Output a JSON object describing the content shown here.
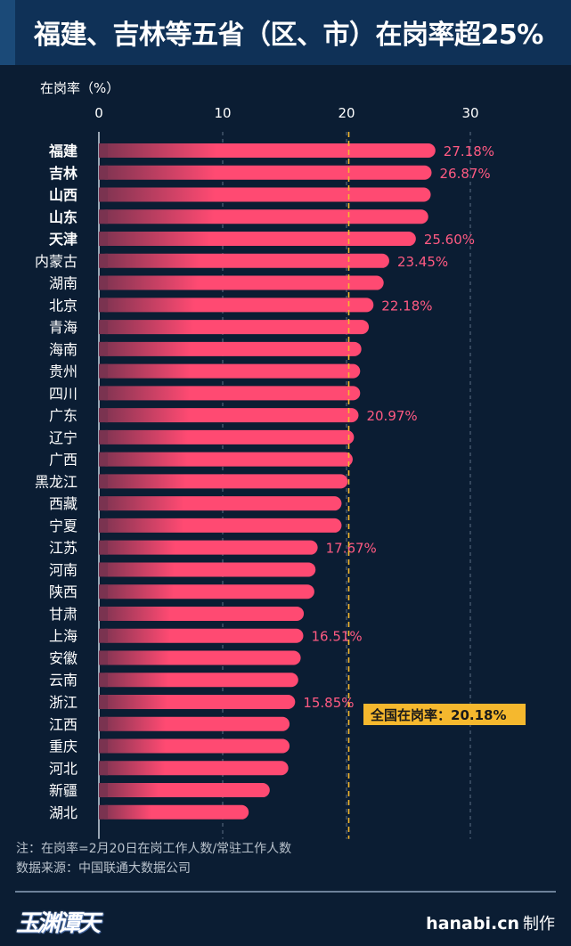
{
  "title": "福建、吉林等五省（区、市）在岗率超25%",
  "chart_data": {
    "type": "bar",
    "orientation": "horizontal",
    "xlabel": "在岗率（%）",
    "xlim": [
      0,
      30
    ],
    "xticks": [
      "0",
      "10",
      "20",
      "30"
    ],
    "grid": true,
    "bar_color": "#ff4a72",
    "categories": [
      "福建",
      "吉林",
      "山西",
      "山东",
      "天津",
      "内蒙古",
      "湖南",
      "北京",
      "青海",
      "海南",
      "贵州",
      "四川",
      "广东",
      "辽宁",
      "广西",
      "黑龙江",
      "西藏",
      "宁夏",
      "江苏",
      "河南",
      "陕西",
      "甘肃",
      "上海",
      "安徽",
      "云南",
      "浙江",
      "江西",
      "重庆",
      "河北",
      "新疆",
      "湖北"
    ],
    "highlighted": [
      "福建",
      "吉林",
      "山西",
      "山东",
      "天津"
    ],
    "values": [
      27.18,
      26.87,
      26.8,
      26.6,
      25.6,
      23.45,
      23.0,
      22.18,
      21.8,
      21.2,
      21.1,
      21.1,
      20.97,
      20.6,
      20.5,
      20.1,
      19.6,
      19.6,
      17.67,
      17.5,
      17.4,
      16.55,
      16.51,
      16.3,
      16.1,
      15.85,
      15.4,
      15.4,
      15.3,
      13.8,
      12.1
    ],
    "data_labels": {
      "福建": "27.18%",
      "吉林": "26.87%",
      "天津": "25.60%",
      "内蒙古": "23.45%",
      "北京": "22.18%",
      "广东": "20.97%",
      "江苏": "17.67%",
      "上海": "16.51%",
      "浙江": "15.85%"
    },
    "reference_line": {
      "value": 20.18,
      "label": "全国在岗率：20.18%",
      "color": "#f5b82e"
    }
  },
  "notes": {
    "definition": "注：在岗率=2月20日在岗工作人数/常驻工作人数",
    "source": "数据来源：中国联通大数据公司"
  },
  "footer": {
    "logo": "玉渊谭天",
    "site": "hanabi.cn",
    "made_by": "制作"
  }
}
